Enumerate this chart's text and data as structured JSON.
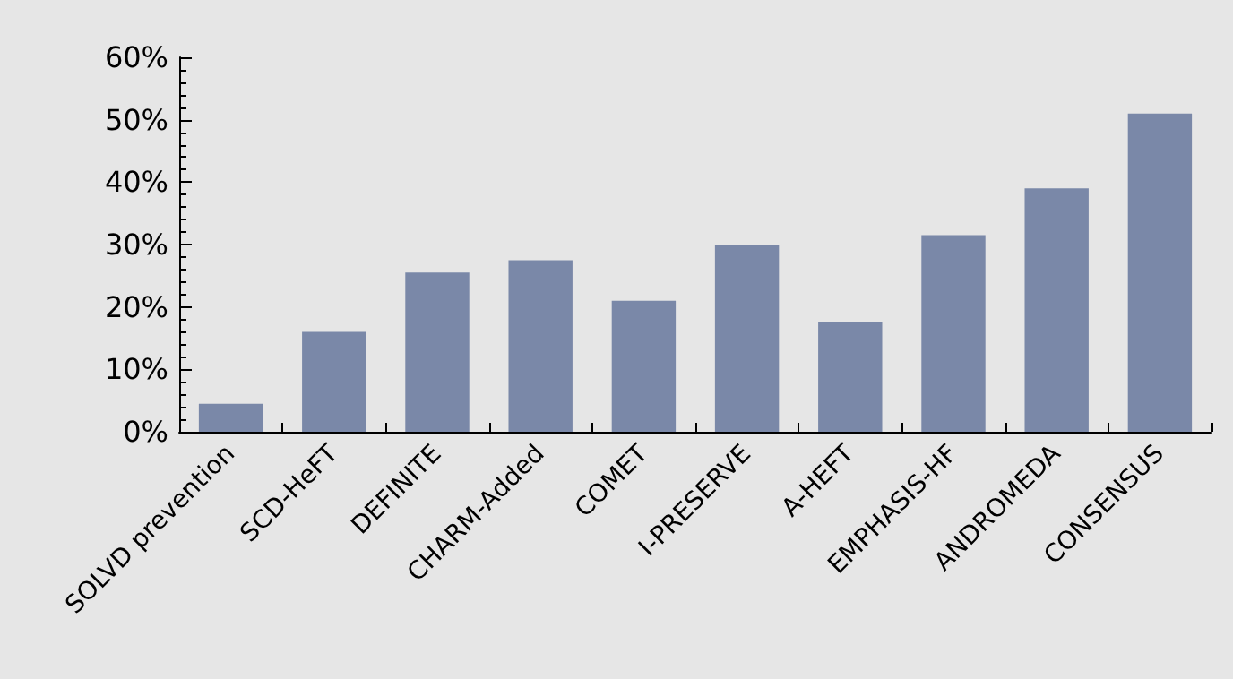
{
  "chart_data": {
    "type": "bar",
    "categories": [
      "SOLVD prevention",
      "SCD-HeFT",
      "DEFINITE",
      "CHARM-Added",
      "COMET",
      "I-PRESERVE",
      "A-HEFT",
      "EMPHASIS-HF",
      "ANDROMEDA",
      "CONSENSUS"
    ],
    "values": [
      4.5,
      16,
      25.5,
      27.5,
      21,
      30,
      17.5,
      31.5,
      39,
      51
    ],
    "color": "#7a88a8",
    "ylim": [
      0,
      60
    ],
    "yticks": [
      {
        "value": 0,
        "label": "0%"
      },
      {
        "value": 10,
        "label": "10%"
      },
      {
        "value": 20,
        "label": "20%"
      },
      {
        "value": 30,
        "label": "30%"
      },
      {
        "value": 40,
        "label": "40%"
      },
      {
        "value": 50,
        "label": "50%"
      },
      {
        "value": 60,
        "label": "60%"
      }
    ],
    "grid": false
  }
}
